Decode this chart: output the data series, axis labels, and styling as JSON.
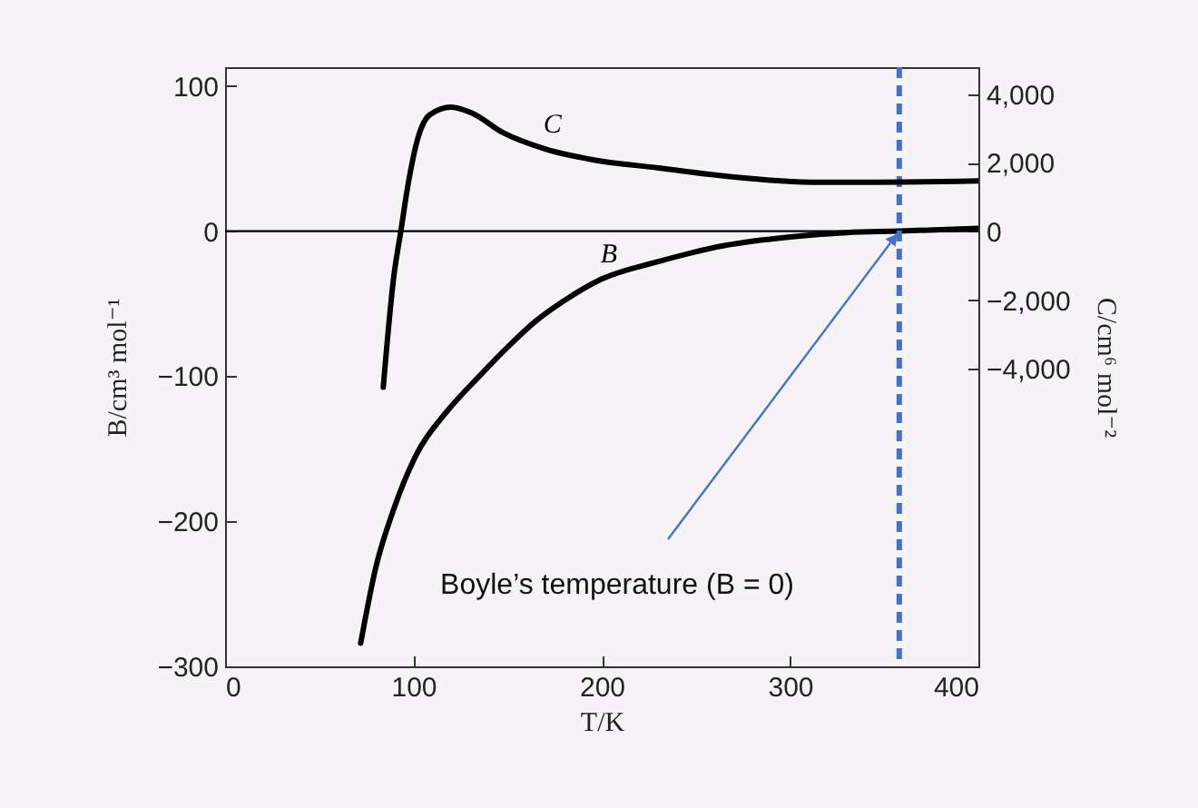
{
  "chart_data": {
    "type": "line",
    "xlabel": "T/K",
    "ylabel": "B/cm³ mol⁻¹",
    "y2label": "C/cm⁶ mol⁻²",
    "xlim": [
      0,
      400
    ],
    "xticks": [
      0,
      100,
      200,
      300,
      400
    ],
    "ylim": [
      -300,
      113
    ],
    "yticks": [
      {
        "value": -300,
        "label": "−300"
      },
      {
        "value": -200,
        "label": "−200"
      },
      {
        "value": -100,
        "label": "−100"
      },
      0,
      100
    ],
    "y2lim": [
      -12650,
      4780
    ],
    "y2ticks": [
      {
        "value": -4000,
        "label": "−4,000"
      },
      {
        "value": -2000,
        "label": "−2,000"
      },
      0,
      {
        "value": 2000,
        "label": "2,000"
      },
      {
        "value": 4000,
        "label": "4,000"
      }
    ],
    "series": [
      {
        "name": "C",
        "color": "#000000",
        "axis": "y2",
        "x": [
          84,
          89.5,
          93.3,
          97.5,
          102.3,
          108.8,
          120,
          131.3,
          147.4,
          170,
          196,
          230,
          266,
          315,
          360,
          400
        ],
        "values": [
          -4530,
          -1350,
          0,
          1470,
          2700,
          3400,
          3620,
          3440,
          2880,
          2400,
          2080,
          1850,
          1610,
          1430,
          1440,
          1470
        ]
      },
      {
        "name": "B",
        "color": "#000000",
        "x": [
          72,
          80,
          90,
          102,
          118,
          135,
          150,
          165,
          180,
          200,
          230,
          265,
          300,
          330,
          358,
          400
        ],
        "values": [
          -284,
          -232,
          -190,
          -153,
          -124,
          -100,
          -80,
          -62,
          -48,
          -33,
          -21,
          -10,
          -4,
          -1,
          0,
          2
        ]
      }
    ],
    "ref_lines": [
      {
        "axis": "y",
        "value": 0,
        "color": "#000000",
        "line_style": "solid"
      },
      {
        "axis": "x",
        "value": 358,
        "color": "#4472c4",
        "line_style": "dashed"
      }
    ],
    "annotations": [
      {
        "text": "Boyle’s temperature (B = 0)",
        "x": 358,
        "y": 0
      }
    ],
    "grid": false,
    "marker": "none",
    "line_style": "solid"
  }
}
